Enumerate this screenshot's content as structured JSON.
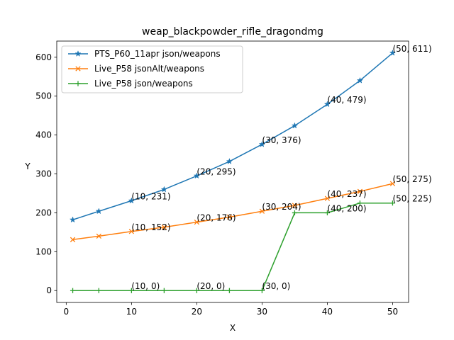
{
  "chart_data": {
    "type": "line",
    "title": "weap_blackpowder_rifle_dragondmg",
    "xlabel": "X",
    "ylabel": "Y",
    "xlim": [
      -1.45,
      52.45
    ],
    "ylim": [
      -30.55,
      641.55
    ],
    "xticks": [
      0,
      10,
      20,
      30,
      40,
      50
    ],
    "yticks": [
      0,
      100,
      200,
      300,
      400,
      500,
      600
    ],
    "legend_position": "top-left",
    "series": [
      {
        "name": "PTS_P60_11apr json/weapons",
        "color": "#1f77b4",
        "marker": "star",
        "x": [
          1,
          5,
          10,
          15,
          20,
          25,
          30,
          35,
          40,
          45,
          50
        ],
        "y": [
          182,
          204,
          231,
          260,
          295,
          332,
          376,
          424,
          479,
          540,
          611
        ]
      },
      {
        "name": "Live_P58 jsonAlt/weapons",
        "color": "#ff7f0e",
        "marker": "x",
        "x": [
          1,
          5,
          10,
          15,
          20,
          25,
          30,
          35,
          40,
          45,
          50
        ],
        "y": [
          131,
          140,
          152,
          163,
          176,
          189,
          204,
          219,
          237,
          255,
          275
        ]
      },
      {
        "name": "Live_P58 json/weapons",
        "color": "#2ca02c",
        "marker": "plus",
        "x": [
          1,
          5,
          10,
          15,
          20,
          25,
          30,
          35,
          40,
          45,
          50
        ],
        "y": [
          0,
          0,
          0,
          0,
          0,
          0,
          0,
          200,
          200,
          225,
          225
        ]
      }
    ],
    "annotations": [
      {
        "x": 10,
        "y": 231,
        "text": "(10, 231)"
      },
      {
        "x": 20,
        "y": 295,
        "text": "(20, 295)"
      },
      {
        "x": 30,
        "y": 376,
        "text": "(30, 376)"
      },
      {
        "x": 40,
        "y": 479,
        "text": "(40, 479)"
      },
      {
        "x": 50,
        "y": 611,
        "text": "(50, 611)"
      },
      {
        "x": 10,
        "y": 152,
        "text": "(10, 152)"
      },
      {
        "x": 20,
        "y": 176,
        "text": "(20, 176)"
      },
      {
        "x": 30,
        "y": 204,
        "text": "(30, 204)"
      },
      {
        "x": 40,
        "y": 237,
        "text": "(40, 237)"
      },
      {
        "x": 50,
        "y": 275,
        "text": "(50, 275)"
      },
      {
        "x": 10,
        "y": 0,
        "text": "(10, 0)"
      },
      {
        "x": 20,
        "y": 0,
        "text": "(20, 0)"
      },
      {
        "x": 30,
        "y": 0,
        "text": "(30, 0)"
      },
      {
        "x": 40,
        "y": 200,
        "text": "(40, 200)"
      },
      {
        "x": 50,
        "y": 225,
        "text": "(50, 225)"
      }
    ]
  }
}
